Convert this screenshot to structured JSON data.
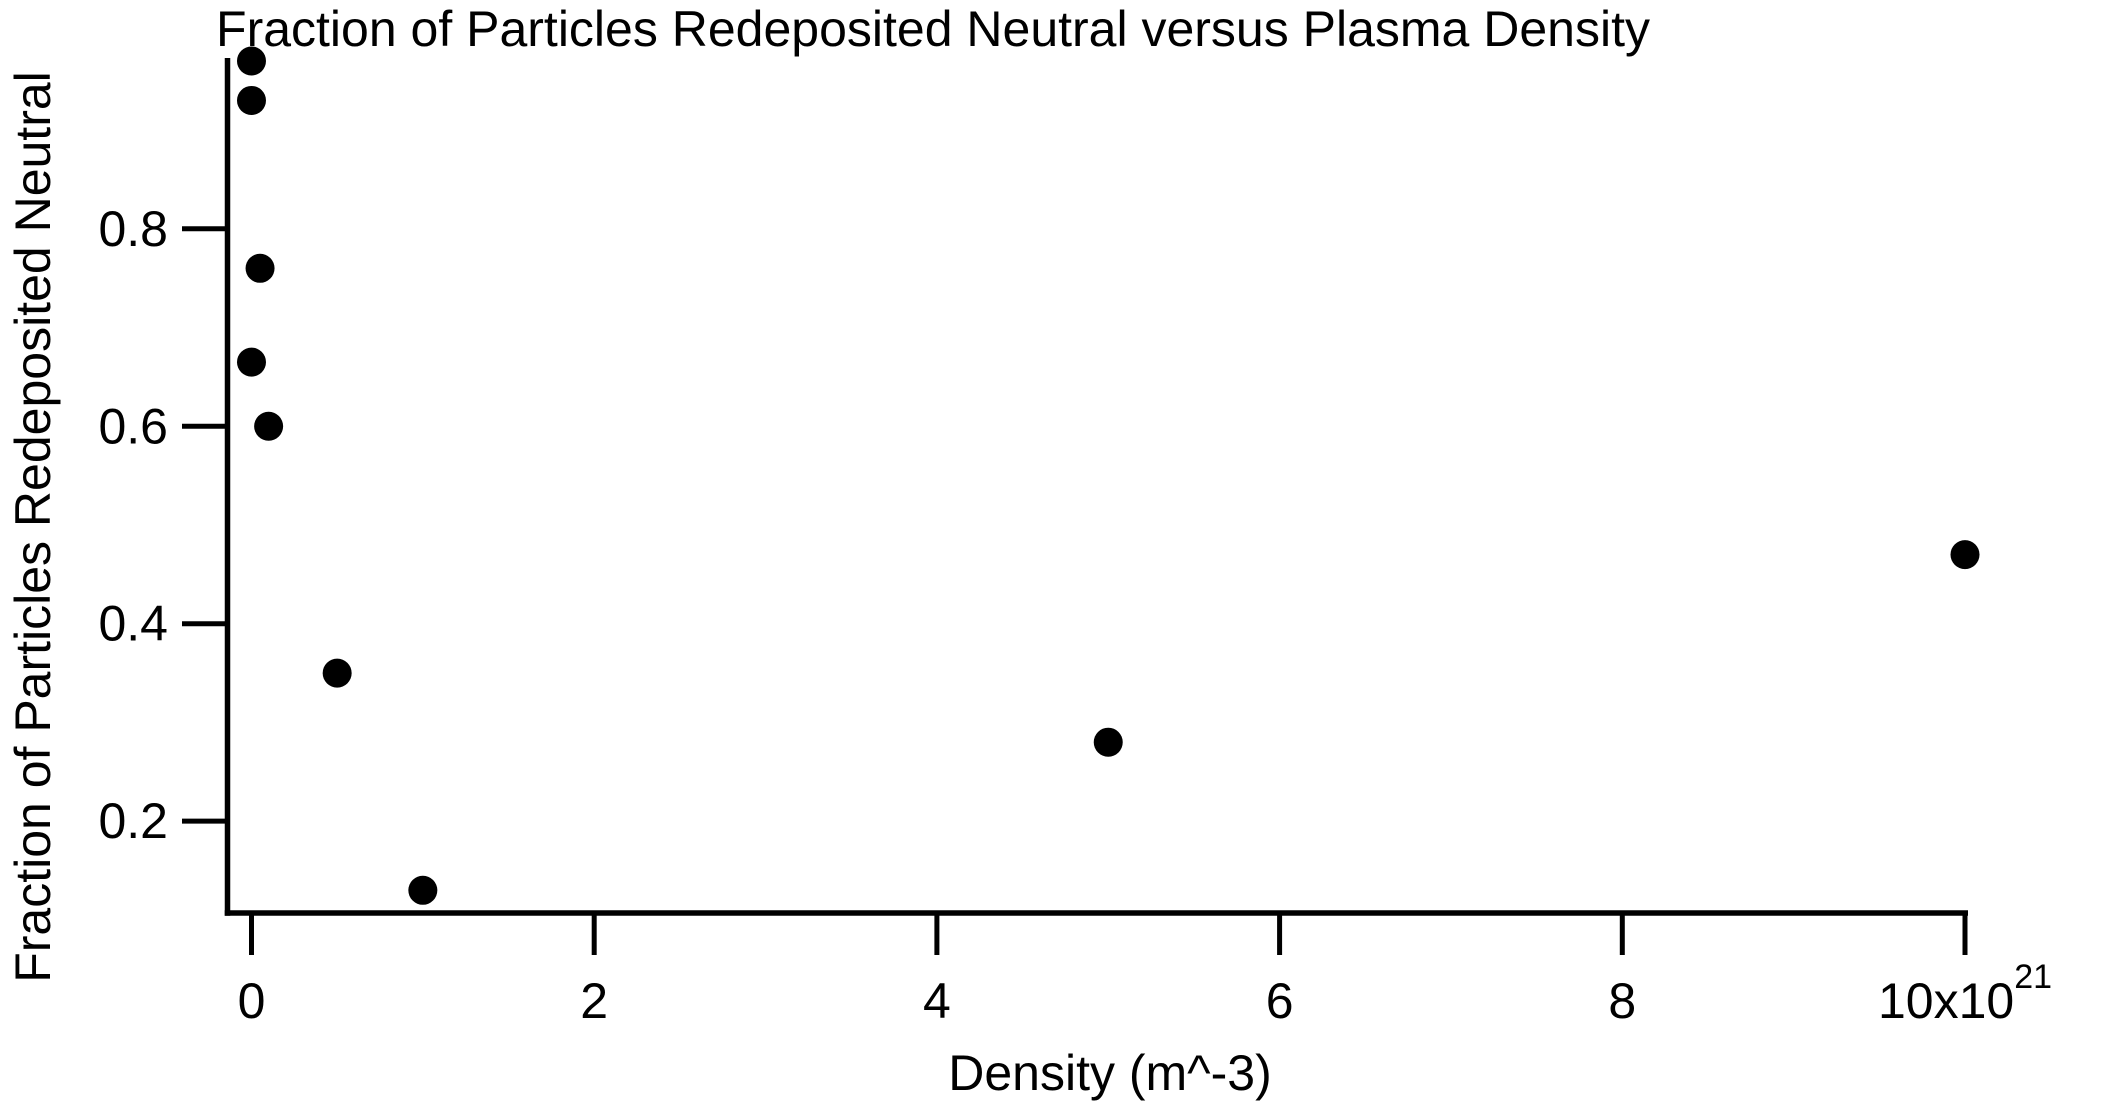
{
  "chart_data": {
    "type": "scatter",
    "title": "Fraction of Particles Redeposited Neutral versus Plasma Density",
    "xlabel": "Density (m^-3)",
    "ylabel": "Fraction of Particles Redeposited Neutral",
    "points": [
      {
        "x": 0.0,
        "y": 0.97
      },
      {
        "x": 0.0,
        "y": 0.93
      },
      {
        "x": 0.05,
        "y": 0.76
      },
      {
        "x": 0.0,
        "y": 0.665
      },
      {
        "x": 0.1,
        "y": 0.6
      },
      {
        "x": 0.5,
        "y": 0.35
      },
      {
        "x": 1.0,
        "y": 0.13
      },
      {
        "x": 5.0,
        "y": 0.28
      },
      {
        "x": 10.0,
        "y": 0.47
      }
    ],
    "xticks": [
      {
        "value": 0,
        "label": "0"
      },
      {
        "value": 2,
        "label": "2"
      },
      {
        "value": 4,
        "label": "4"
      },
      {
        "value": 6,
        "label": "6"
      },
      {
        "value": 8,
        "label": "8"
      },
      {
        "value": 10,
        "label": "10x10",
        "superscript": "21"
      }
    ],
    "yticks": [
      {
        "value": 0.2,
        "label": "0.2"
      },
      {
        "value": 0.4,
        "label": "0.4"
      },
      {
        "value": 0.6,
        "label": "0.6"
      },
      {
        "value": 0.8,
        "label": "0.8"
      }
    ],
    "xlim": [
      -0.14,
      10.0
    ],
    "ylim": [
      0.107,
      0.973
    ],
    "grid": false,
    "legend": null,
    "marker_color": "#000000",
    "axis_color": "#000000",
    "background_color": "#ffffff"
  }
}
